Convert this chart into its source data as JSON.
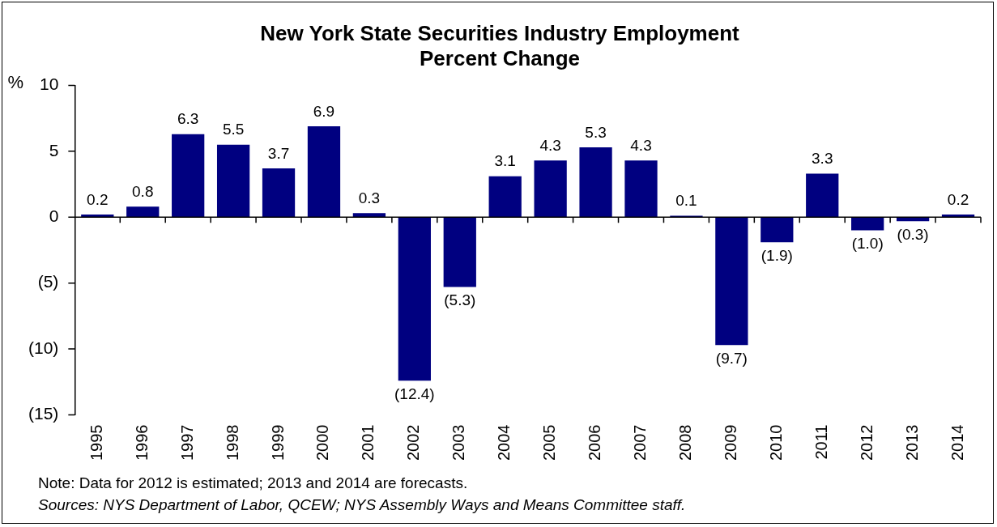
{
  "chart_data": {
    "type": "bar",
    "title": "New York State Securities Industry Employment",
    "subtitle": "Percent Change",
    "ylabel": "%",
    "categories": [
      "1995",
      "1996",
      "1997",
      "1998",
      "1999",
      "2000",
      "2001",
      "2002",
      "2003",
      "2004",
      "2005",
      "2006",
      "2007",
      "2008",
      "2009",
      "2010",
      "2011",
      "2012",
      "2013",
      "2014"
    ],
    "values": [
      0.2,
      0.8,
      6.3,
      5.5,
      3.7,
      6.9,
      0.3,
      -12.4,
      -5.3,
      3.1,
      4.3,
      5.3,
      4.3,
      0.1,
      -9.7,
      -1.9,
      3.3,
      -1.0,
      -0.3,
      0.2
    ],
    "value_labels": [
      "0.2",
      "0.8",
      "6.3",
      "5.5",
      "3.7",
      "6.9",
      "0.3",
      "(12.4)",
      "(5.3)",
      "3.1",
      "4.3",
      "5.3",
      "4.3",
      "0.1",
      "(9.7)",
      "(1.9)",
      "3.3",
      "(1.0)",
      "(0.3)",
      "0.2"
    ],
    "color": "#000080",
    "ylim": [
      -15,
      10
    ],
    "yticks": [
      {
        "value": -15,
        "label": "(15)"
      },
      {
        "value": -10,
        "label": "(10)"
      },
      {
        "value": -5,
        "label": "(5)"
      },
      0,
      5,
      10
    ],
    "grid": false,
    "legend": false,
    "ref_lines": [
      {
        "axis": "y",
        "value": 0,
        "color": "#000000"
      }
    ],
    "annotations": [
      "Note: Data for 2012 is estimated; 2013 and 2014 are forecasts.",
      "Sources: NYS Department of Labor, QCEW; NYS Assembly Ways and Means Committee staff."
    ]
  }
}
